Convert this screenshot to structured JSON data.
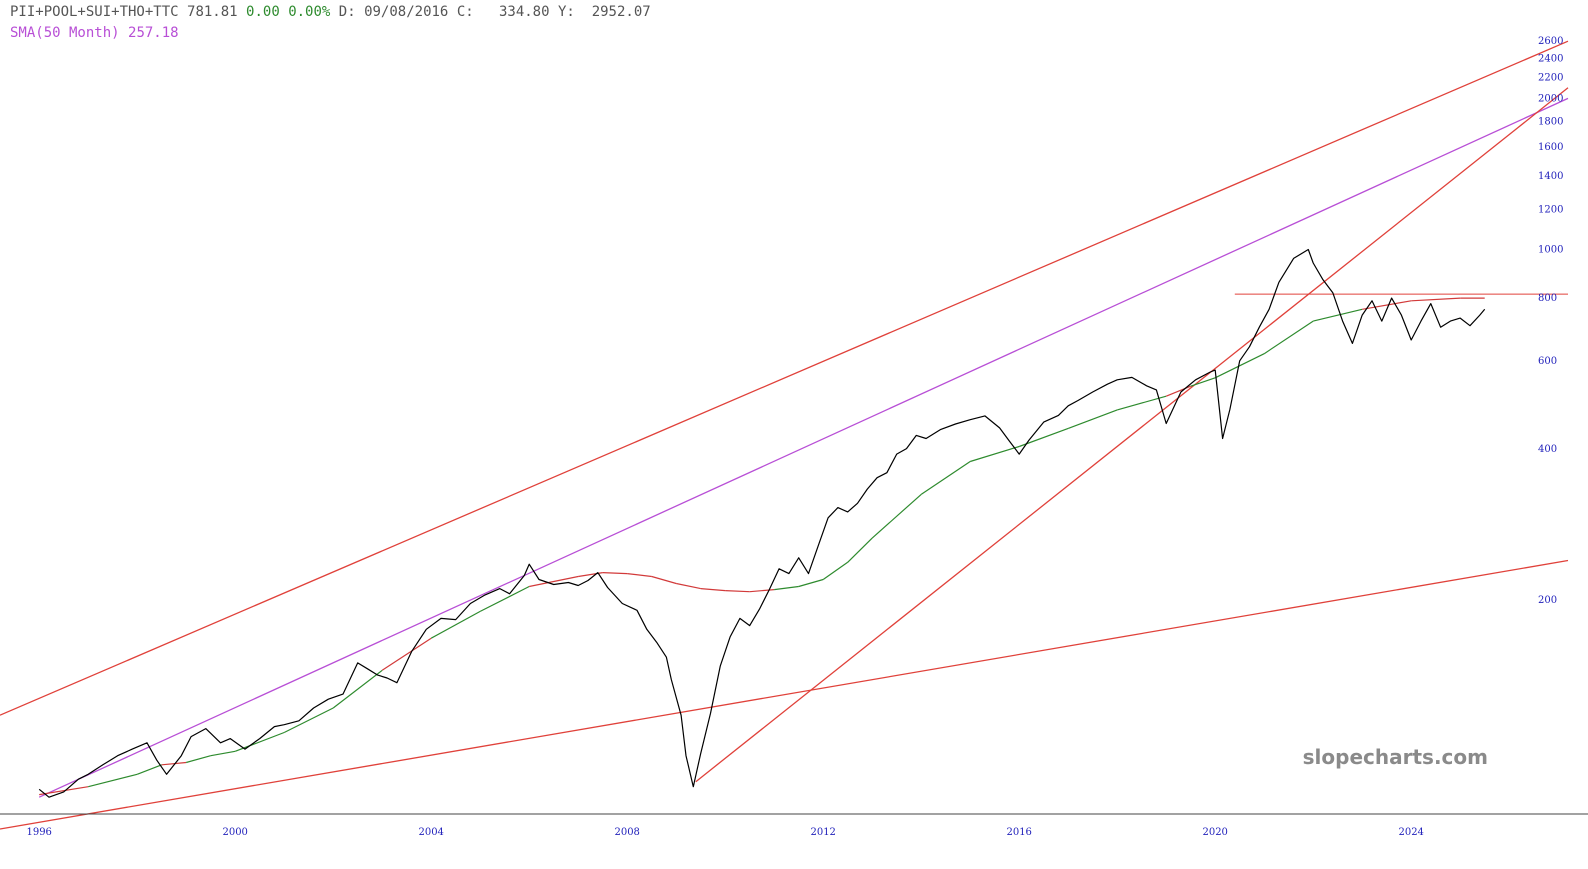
{
  "header": {
    "symbol": "PII+POOL+SUI+THO+TTC",
    "last": "781.81",
    "change": "0.00",
    "change_pct": "0.00%",
    "date_label": "D:",
    "date": "09/08/2016",
    "close_label": "C:",
    "close": "334.80",
    "y_label": "Y:",
    "y": "2952.07",
    "sma_label": "SMA(50 Month)",
    "sma_value": "257.18"
  },
  "watermark": "slopecharts.com",
  "colors": {
    "price": "#000000",
    "sma_above": "#2e8b2e",
    "sma_below": "#d23a3a",
    "trendline": "#e0413a",
    "channel_mid": "#b84fd6",
    "axis_text": "#2222bb",
    "header_text": "#555555"
  },
  "chart_data": {
    "type": "line",
    "y_scale": "log",
    "ylim": [
      75,
      2700
    ],
    "xlim": [
      1995.2,
      2027.2
    ],
    "x_ticks": [
      {
        "value": 1996,
        "label": "1996"
      },
      {
        "value": 2000,
        "label": "2000"
      },
      {
        "value": 2004,
        "label": "2004"
      },
      {
        "value": 2008,
        "label": "2008"
      },
      {
        "value": 2012,
        "label": "2012"
      },
      {
        "value": 2016,
        "label": "2016"
      },
      {
        "value": 2020,
        "label": "2020"
      },
      {
        "value": 2024,
        "label": "2024"
      }
    ],
    "y_ticks": [
      {
        "value": 2600,
        "label": "2600"
      },
      {
        "value": 2400,
        "label": "2400"
      },
      {
        "value": 2200,
        "label": "2200"
      },
      {
        "value": 2000,
        "label": "2000"
      },
      {
        "value": 1800,
        "label": "1800"
      },
      {
        "value": 1600,
        "label": "1600"
      },
      {
        "value": 1400,
        "label": "1400"
      },
      {
        "value": 1200,
        "label": "1200"
      },
      {
        "value": 1000,
        "label": "1000"
      },
      {
        "value": 800,
        "label": "800"
      },
      {
        "value": 600,
        "label": "600"
      },
      {
        "value": 400,
        "label": "400"
      },
      {
        "value": 200,
        "label": "200"
      }
    ],
    "series": [
      {
        "kind": "price",
        "points": [
          [
            1996.0,
            84
          ],
          [
            1996.2,
            81
          ],
          [
            1996.5,
            83
          ],
          [
            1996.8,
            88
          ],
          [
            1997.0,
            90
          ],
          [
            1997.3,
            94
          ],
          [
            1997.6,
            98
          ],
          [
            1997.9,
            101
          ],
          [
            1998.2,
            104
          ],
          [
            1998.4,
            96
          ],
          [
            1998.6,
            90
          ],
          [
            1998.9,
            98
          ],
          [
            1999.1,
            107
          ],
          [
            1999.4,
            111
          ],
          [
            1999.7,
            104
          ],
          [
            1999.9,
            106
          ],
          [
            2000.2,
            101
          ],
          [
            2000.5,
            106
          ],
          [
            2000.8,
            112
          ],
          [
            2001.0,
            113
          ],
          [
            2001.3,
            115
          ],
          [
            2001.6,
            122
          ],
          [
            2001.9,
            127
          ],
          [
            2002.2,
            130
          ],
          [
            2002.5,
            150
          ],
          [
            2002.7,
            146
          ],
          [
            2002.9,
            142
          ],
          [
            2003.1,
            140
          ],
          [
            2003.3,
            137
          ],
          [
            2003.6,
            158
          ],
          [
            2003.9,
            175
          ],
          [
            2004.2,
            184
          ],
          [
            2004.5,
            183
          ],
          [
            2004.8,
            197
          ],
          [
            2005.1,
            205
          ],
          [
            2005.4,
            211
          ],
          [
            2005.6,
            206
          ],
          [
            2005.9,
            224
          ],
          [
            2006.0,
            236
          ],
          [
            2006.2,
            220
          ],
          [
            2006.5,
            215
          ],
          [
            2006.8,
            217
          ],
          [
            2007.0,
            214
          ],
          [
            2007.2,
            219
          ],
          [
            2007.4,
            227
          ],
          [
            2007.6,
            212
          ],
          [
            2007.9,
            197
          ],
          [
            2008.2,
            191
          ],
          [
            2008.4,
            175
          ],
          [
            2008.6,
            165
          ],
          [
            2008.8,
            154
          ],
          [
            2008.9,
            139
          ],
          [
            2009.1,
            118
          ],
          [
            2009.2,
            98
          ],
          [
            2009.35,
            85
          ],
          [
            2009.5,
            99
          ],
          [
            2009.7,
            119
          ],
          [
            2009.9,
            148
          ],
          [
            2010.1,
            169
          ],
          [
            2010.3,
            184
          ],
          [
            2010.5,
            178
          ],
          [
            2010.7,
            192
          ],
          [
            2010.9,
            210
          ],
          [
            2011.1,
            231
          ],
          [
            2011.3,
            226
          ],
          [
            2011.5,
            243
          ],
          [
            2011.7,
            226
          ],
          [
            2011.9,
            257
          ],
          [
            2012.1,
            292
          ],
          [
            2012.3,
            306
          ],
          [
            2012.5,
            300
          ],
          [
            2012.7,
            312
          ],
          [
            2012.9,
            333
          ],
          [
            2013.1,
            351
          ],
          [
            2013.3,
            359
          ],
          [
            2013.5,
            391
          ],
          [
            2013.7,
            401
          ],
          [
            2013.9,
            426
          ],
          [
            2014.1,
            420
          ],
          [
            2014.4,
            438
          ],
          [
            2014.7,
            449
          ],
          [
            2015.0,
            458
          ],
          [
            2015.3,
            466
          ],
          [
            2015.6,
            441
          ],
          [
            2015.8,
            415
          ],
          [
            2016.0,
            391
          ],
          [
            2016.2,
            417
          ],
          [
            2016.5,
            453
          ],
          [
            2016.8,
            467
          ],
          [
            2017.0,
            488
          ],
          [
            2017.2,
            500
          ],
          [
            2017.5,
            520
          ],
          [
            2017.8,
            539
          ],
          [
            2018.0,
            550
          ],
          [
            2018.3,
            556
          ],
          [
            2018.6,
            535
          ],
          [
            2018.8,
            525
          ],
          [
            2019.0,
            450
          ],
          [
            2019.3,
            520
          ],
          [
            2019.6,
            550
          ],
          [
            2019.9,
            570
          ],
          [
            2020.0,
            575
          ],
          [
            2020.15,
            420
          ],
          [
            2020.3,
            480
          ],
          [
            2020.5,
            600
          ],
          [
            2020.7,
            640
          ],
          [
            2020.9,
            700
          ],
          [
            2021.1,
            760
          ],
          [
            2021.3,
            860
          ],
          [
            2021.6,
            960
          ],
          [
            2021.9,
            1000
          ],
          [
            2022.0,
            940
          ],
          [
            2022.2,
            870
          ],
          [
            2022.4,
            820
          ],
          [
            2022.6,
            720
          ],
          [
            2022.8,
            650
          ],
          [
            2023.0,
            740
          ],
          [
            2023.2,
            790
          ],
          [
            2023.4,
            720
          ],
          [
            2023.6,
            800
          ],
          [
            2023.8,
            740
          ],
          [
            2024.0,
            660
          ],
          [
            2024.2,
            720
          ],
          [
            2024.4,
            780
          ],
          [
            2024.6,
            700
          ],
          [
            2024.8,
            720
          ],
          [
            2025.0,
            730
          ],
          [
            2025.2,
            705
          ],
          [
            2025.4,
            740
          ],
          [
            2025.5,
            760
          ]
        ]
      },
      {
        "kind": "sma",
        "points": [
          [
            1996.0,
            82
          ],
          [
            1997.0,
            85
          ],
          [
            1998.0,
            90
          ],
          [
            1998.5,
            94
          ],
          [
            1999.0,
            95
          ],
          [
            1999.5,
            98
          ],
          [
            2000.0,
            100
          ],
          [
            2001.0,
            109
          ],
          [
            2002.0,
            122
          ],
          [
            2003.0,
            145
          ],
          [
            2004.0,
            168
          ],
          [
            2005.0,
            190
          ],
          [
            2006.0,
            213
          ],
          [
            2007.0,
            223
          ],
          [
            2007.5,
            227
          ],
          [
            2008.0,
            226
          ],
          [
            2008.5,
            223
          ],
          [
            2009.0,
            216
          ],
          [
            2009.5,
            211
          ],
          [
            2010.0,
            209
          ],
          [
            2010.5,
            208
          ],
          [
            2011.0,
            210
          ],
          [
            2011.5,
            213
          ],
          [
            2012.0,
            220
          ],
          [
            2012.5,
            238
          ],
          [
            2013.0,
            266
          ],
          [
            2014.0,
            325
          ],
          [
            2015.0,
            378
          ],
          [
            2016.0,
            405
          ],
          [
            2017.0,
            440
          ],
          [
            2018.0,
            479
          ],
          [
            2019.0,
            510
          ],
          [
            2019.5,
            534
          ],
          [
            2020.0,
            555
          ],
          [
            2021.0,
            620
          ],
          [
            2022.0,
            720
          ],
          [
            2023.0,
            760
          ],
          [
            2024.0,
            790
          ],
          [
            2025.0,
            800
          ],
          [
            2025.5,
            800
          ]
        ]
      }
    ],
    "trendlines": [
      {
        "kind": "channel-top",
        "points": [
          [
            1995.2,
            118
          ],
          [
            2027.2,
            2600
          ]
        ]
      },
      {
        "kind": "channel-mid",
        "points": [
          [
            1996.0,
            81
          ],
          [
            2027.2,
            2000
          ]
        ]
      },
      {
        "kind": "support",
        "points": [
          [
            1995.2,
            70
          ],
          [
            2027.2,
            240
          ]
        ]
      },
      {
        "kind": "support-steep",
        "points": [
          [
            2009.4,
            87
          ],
          [
            2027.2,
            2100
          ]
        ]
      },
      {
        "kind": "horizontal",
        "points": [
          [
            2020.4,
            815
          ],
          [
            2027.2,
            815
          ]
        ]
      }
    ]
  }
}
